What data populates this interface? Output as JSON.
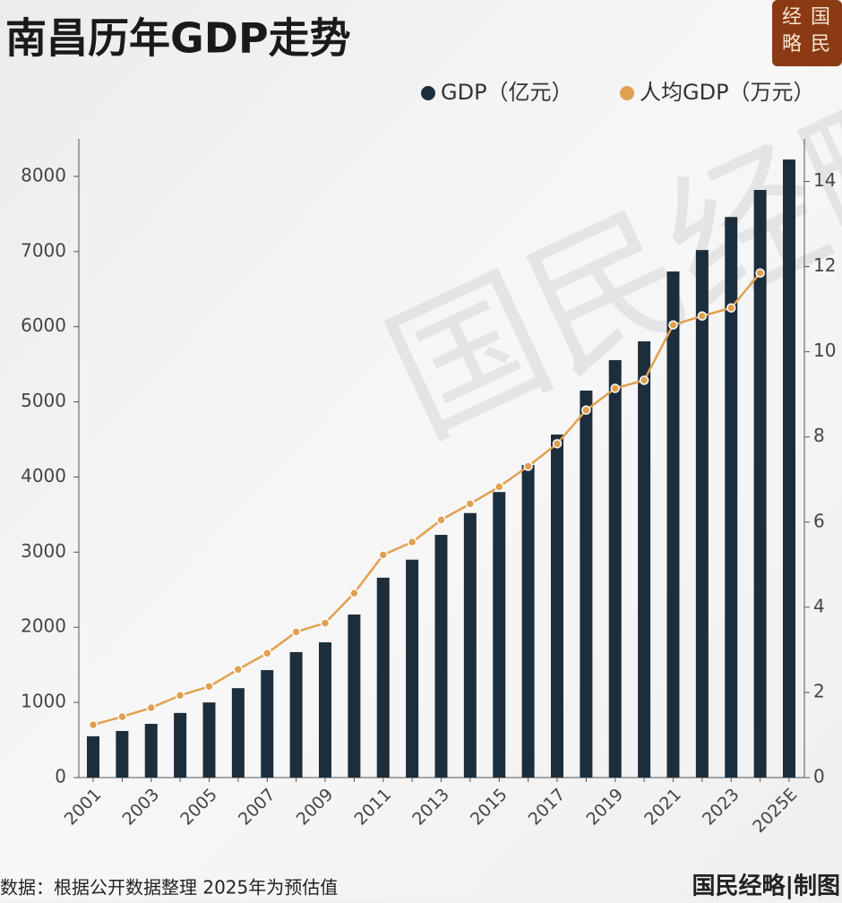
{
  "title": "南昌历年GDP走势",
  "logo": [
    "经",
    "国",
    "略",
    "民"
  ],
  "watermark": "国民经略",
  "source": "数据：根据公开数据整理 2025年为预估值",
  "credit": "国民经略|制图",
  "chart_data": {
    "type": "bar",
    "categories": [
      "2001",
      null,
      "2003",
      null,
      "2005",
      null,
      "2007",
      null,
      "2009",
      null,
      "2011",
      null,
      "2013",
      null,
      "2015",
      null,
      "2017",
      null,
      "2019",
      null,
      "2021",
      null,
      "2023",
      null,
      "2025E"
    ],
    "series": [
      {
        "name": "GDP（亿元）",
        "color": "#1c2e3c",
        "values": [
          550,
          620,
          715,
          860,
          1000,
          1190,
          1430,
          1670,
          1800,
          2170,
          2660,
          2900,
          3230,
          3520,
          3800,
          4160,
          4565,
          5150,
          5555,
          5805,
          6735,
          7020,
          7460,
          7820,
          8225
        ]
      },
      {
        "name": "人均GDP（万元）",
        "color": "#e0a050",
        "axis": "y2",
        "values": [
          1.24,
          1.43,
          1.64,
          1.93,
          2.14,
          2.54,
          2.92,
          3.42,
          3.63,
          4.33,
          5.23,
          5.53,
          6.05,
          6.43,
          6.83,
          7.31,
          7.84,
          8.63,
          9.14,
          9.33,
          10.63,
          10.84,
          11.03,
          11.85,
          null
        ]
      }
    ],
    "ylim": [
      0,
      8500
    ],
    "yticks": [
      0,
      1000,
      2000,
      3000,
      4000,
      5000,
      6000,
      7000,
      8000
    ],
    "y2lim": [
      0,
      15
    ],
    "y2ticks": [
      0,
      2,
      4,
      6,
      8,
      10,
      12,
      14
    ]
  }
}
